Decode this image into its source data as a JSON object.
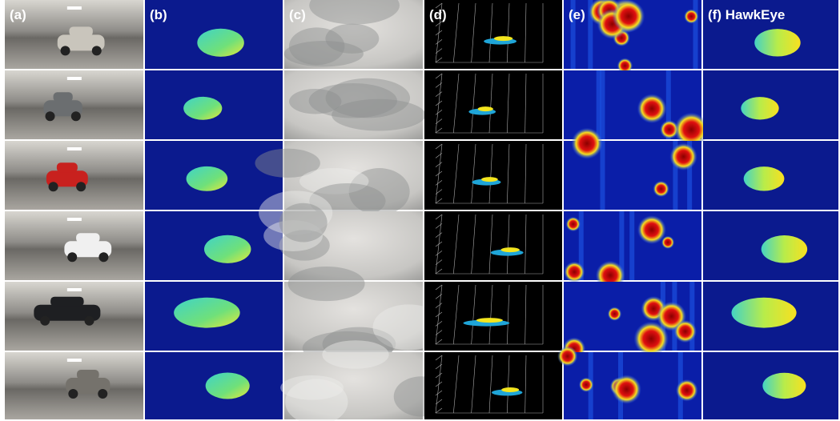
{
  "panels": [
    {
      "label": "(a)"
    },
    {
      "label": "(b)"
    },
    {
      "label": "(c)"
    },
    {
      "label": "(d)"
    },
    {
      "label": "(e)"
    },
    {
      "label": "(f) HawkEye"
    }
  ]
}
